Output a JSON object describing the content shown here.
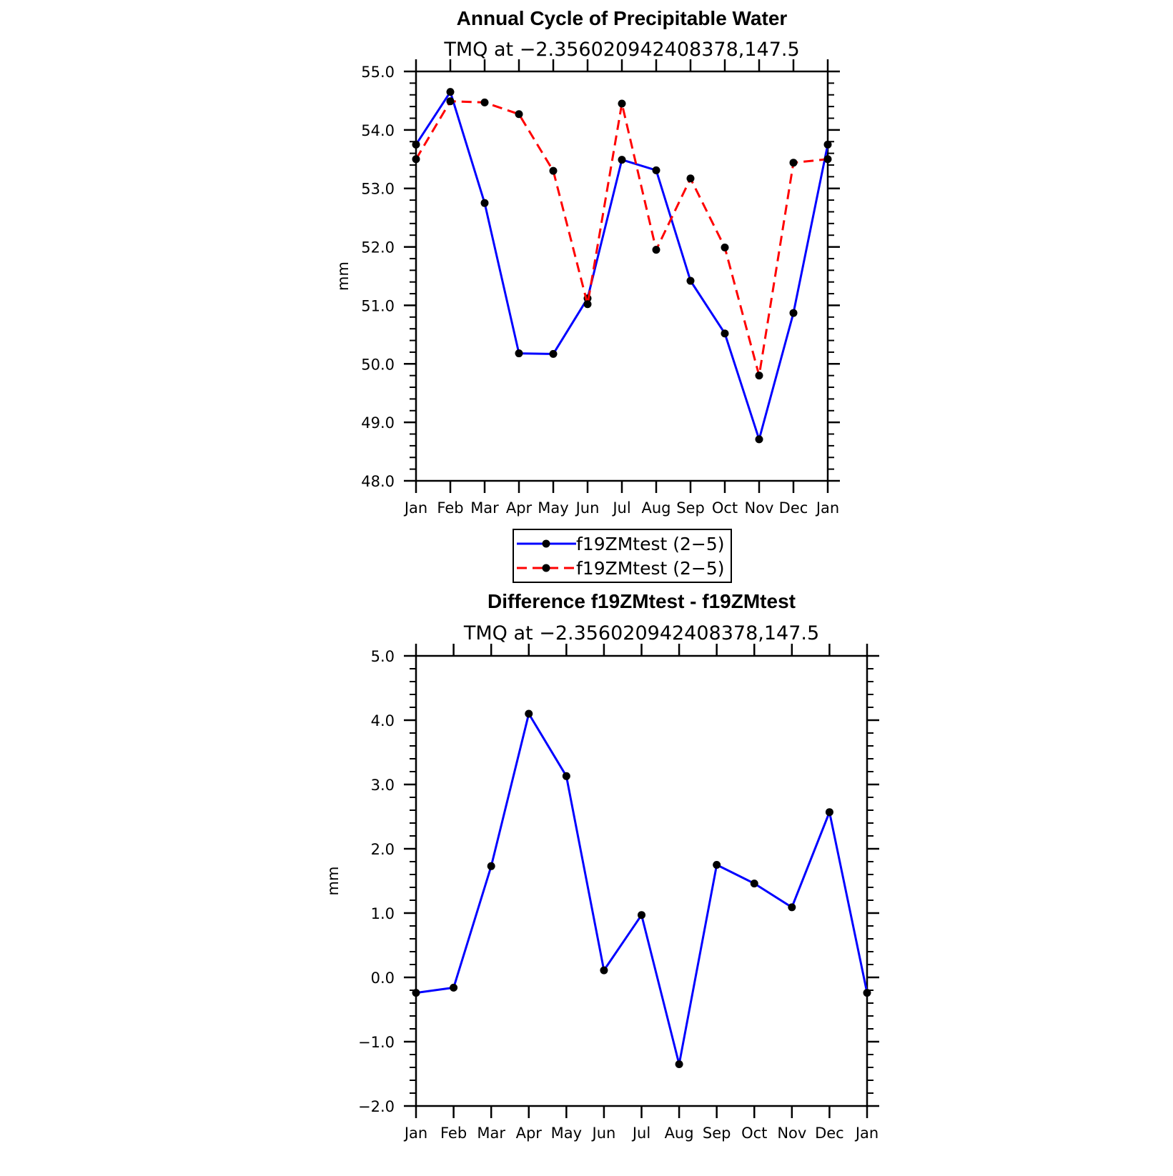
{
  "chart_data": [
    {
      "type": "line",
      "title": "Annual Cycle of Precipitable Water",
      "subtitle": "TMQ at −2.356020942408378,147.5",
      "xlabel": "",
      "ylabel": "mm",
      "categories": [
        "Jan",
        "Feb",
        "Mar",
        "Apr",
        "May",
        "Jun",
        "Jul",
        "Aug",
        "Sep",
        "Oct",
        "Nov",
        "Dec",
        "Jan"
      ],
      "ylim": [
        48.0,
        55.0
      ],
      "yticks": [
        48.0,
        49.0,
        50.0,
        51.0,
        52.0,
        53.0,
        54.0,
        55.0
      ],
      "ytick_labels": [
        "48.0",
        "49.0",
        "50.0",
        "51.0",
        "52.0",
        "53.0",
        "54.0",
        "55.0"
      ],
      "grid": false,
      "legend_position": "bottom",
      "series": [
        {
          "name": "f19ZMtest (2−5)",
          "color": "#0000ff",
          "dash": "solid",
          "values": [
            53.75,
            54.65,
            52.75,
            50.18,
            50.17,
            51.12,
            53.49,
            53.31,
            51.42,
            50.52,
            48.71,
            50.87,
            53.75
          ]
        },
        {
          "name": "f19ZMtest (2−5)",
          "color": "#ff0000",
          "dash": "dashed",
          "values": [
            53.5,
            54.49,
            54.47,
            54.27,
            53.3,
            51.02,
            54.45,
            51.95,
            53.17,
            51.99,
            49.8,
            53.44,
            53.5
          ]
        }
      ]
    },
    {
      "type": "line",
      "title": "Difference f19ZMtest - f19ZMtest",
      "subtitle": "TMQ at −2.356020942408378,147.5",
      "xlabel": "",
      "ylabel": "mm",
      "categories": [
        "Jan",
        "Feb",
        "Mar",
        "Apr",
        "May",
        "Jun",
        "Jul",
        "Aug",
        "Sep",
        "Oct",
        "Nov",
        "Dec",
        "Jan"
      ],
      "ylim": [
        -2.0,
        5.0
      ],
      "yticks": [
        -2.0,
        -1.0,
        0.0,
        1.0,
        2.0,
        3.0,
        4.0,
        5.0
      ],
      "ytick_labels": [
        "−2.0",
        "−1.0",
        "0.0",
        "1.0",
        "2.0",
        "3.0",
        "4.0",
        "5.0"
      ],
      "grid": false,
      "series": [
        {
          "color": "#0000ff",
          "dash": "solid",
          "values": [
            -0.24,
            -0.16,
            1.73,
            4.1,
            3.13,
            0.11,
            0.97,
            -1.35,
            1.75,
            1.46,
            1.09,
            2.57,
            -0.24
          ]
        }
      ]
    }
  ]
}
